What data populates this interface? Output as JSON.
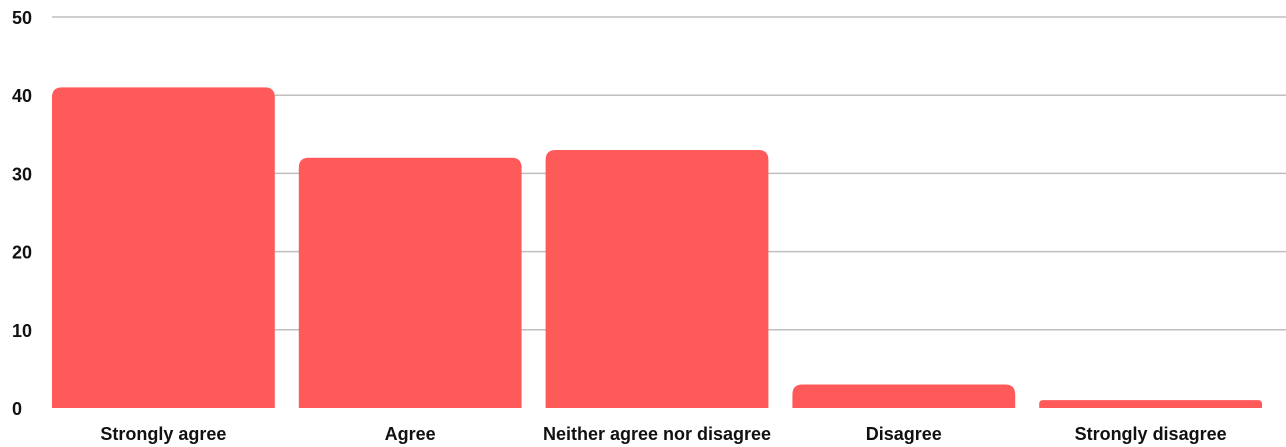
{
  "chart_data": {
    "type": "bar",
    "title": "",
    "xlabel": "",
    "ylabel": "",
    "categories": [
      "Strongly agree",
      "Agree",
      "Neither agree nor disagree",
      "Disagree",
      "Strongly disagree"
    ],
    "values": [
      41,
      32,
      33,
      3,
      1
    ],
    "ylim": [
      0,
      50
    ],
    "yticks": [
      0,
      10,
      20,
      30,
      40,
      50
    ],
    "grid": true,
    "legend": "none",
    "bar_color": "#ff5a5a",
    "grid_color": "#bfbfbf"
  }
}
